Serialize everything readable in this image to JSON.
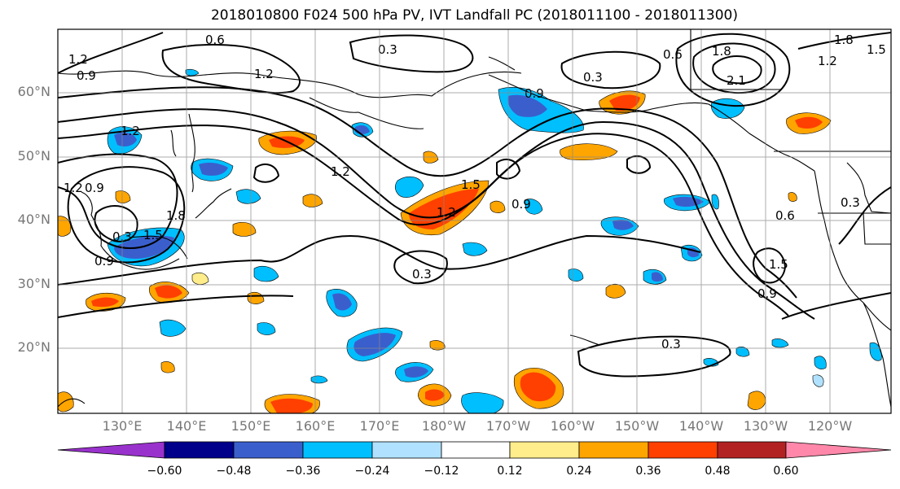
{
  "title": "2018010800 F024 500 hPa PV, IVT Landfall PC (2018011100 - 2018011300)",
  "lat_labels": [
    "60°N",
    "50°N",
    "40°N",
    "30°N",
    "20°N"
  ],
  "lon_labels": [
    "130°E",
    "140°E",
    "150°E",
    "160°E",
    "170°E",
    "180°W",
    "170°W",
    "160°W",
    "150°W",
    "140°W",
    "130°W",
    "120°W"
  ],
  "contour_labels": [
    "1.2",
    "0.9",
    "1.2",
    "0.6",
    "0.3",
    "1.2",
    "0.3",
    "0.6",
    "1.8",
    "2.1",
    "1.8",
    "1.5",
    "1.2",
    "0.9",
    "1.2",
    "1.5",
    "1.8",
    "0.9",
    "0.3",
    "0.9",
    "0.6",
    "1.5",
    "0.3",
    "0.3",
    "0.3",
    "0.9",
    "1.2",
    "1.5",
    "1.2",
    "0.9"
  ],
  "colorbar": {
    "ticks": [
      "−0.60",
      "−0.48",
      "−0.36",
      "−0.24",
      "−0.12",
      "0.12",
      "0.24",
      "0.36",
      "0.48",
      "0.60"
    ],
    "colors": [
      "#9932cc",
      "#00008b",
      "#3a5fcd",
      "#00bfff",
      "#b0e2ff",
      "#ffffff",
      "#ffec8b",
      "#ffa500",
      "#ff4000",
      "#b22222",
      "#ff88aa"
    ]
  }
}
